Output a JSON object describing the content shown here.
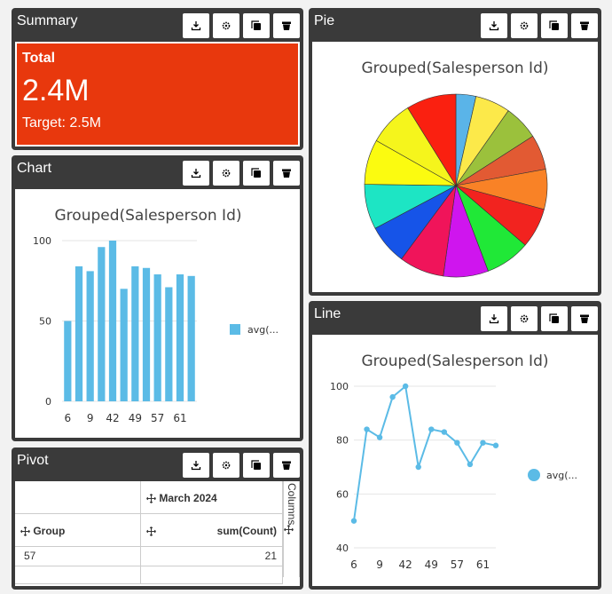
{
  "toolbar_icons": [
    "download-icon",
    "gear-icon",
    "copy-icon",
    "trash-icon"
  ],
  "summary": {
    "title": "Summary",
    "label": "Total",
    "value": "2.4M",
    "target": "Target: 2.5M",
    "color": "#e8380d"
  },
  "pie": {
    "title": "Pie",
    "chart_data": {
      "type": "pie",
      "title": "Grouped(Salesperson Id)",
      "values": [
        4,
        7,
        7,
        7,
        8,
        8,
        9,
        9,
        9,
        8,
        9,
        9,
        9,
        10
      ],
      "colors": [
        "#5ab4e8",
        "#fce94a",
        "#9bc13c",
        "#e25a33",
        "#f98226",
        "#f2231f",
        "#20e837",
        "#cf15ee",
        "#f0145a",
        "#1654e8",
        "#1de5c4",
        "#fbfb10",
        "#f5f51c",
        "#fa2010"
      ]
    }
  },
  "chart": {
    "title": "Chart",
    "chart_data": {
      "type": "bar",
      "title": "Grouped(Salesperson Id)",
      "categories": [
        "6",
        "",
        "9",
        "",
        "42",
        "",
        "49",
        "",
        "57",
        "",
        "61",
        ""
      ],
      "values": [
        50,
        84,
        81,
        96,
        100,
        70,
        84,
        83,
        79,
        71,
        79,
        78
      ],
      "ylim": [
        0,
        100
      ],
      "yticks": [
        "0",
        "50",
        "100"
      ],
      "legend": "avg(...",
      "color": "#5bbbe6"
    }
  },
  "line": {
    "title": "Line",
    "chart_data": {
      "type": "line",
      "title": "Grouped(Salesperson Id)",
      "categories": [
        "6",
        "",
        "9",
        "",
        "42",
        "",
        "49",
        "",
        "57",
        "",
        "61",
        ""
      ],
      "values": [
        50,
        84,
        81,
        96,
        100,
        70,
        84,
        83,
        79,
        71,
        79,
        78
      ],
      "ylim": [
        40,
        100
      ],
      "yticks": [
        "40",
        "60",
        "80",
        "100"
      ],
      "legend": "avg(...",
      "color": "#5bbbe6"
    }
  },
  "pivot": {
    "title": "Pivot",
    "column_header": "March 2024",
    "row_header": "Group",
    "measure": "sum(Count)",
    "columns_label": "Columns",
    "rows": [
      {
        "group": "57",
        "value": "21"
      }
    ]
  }
}
